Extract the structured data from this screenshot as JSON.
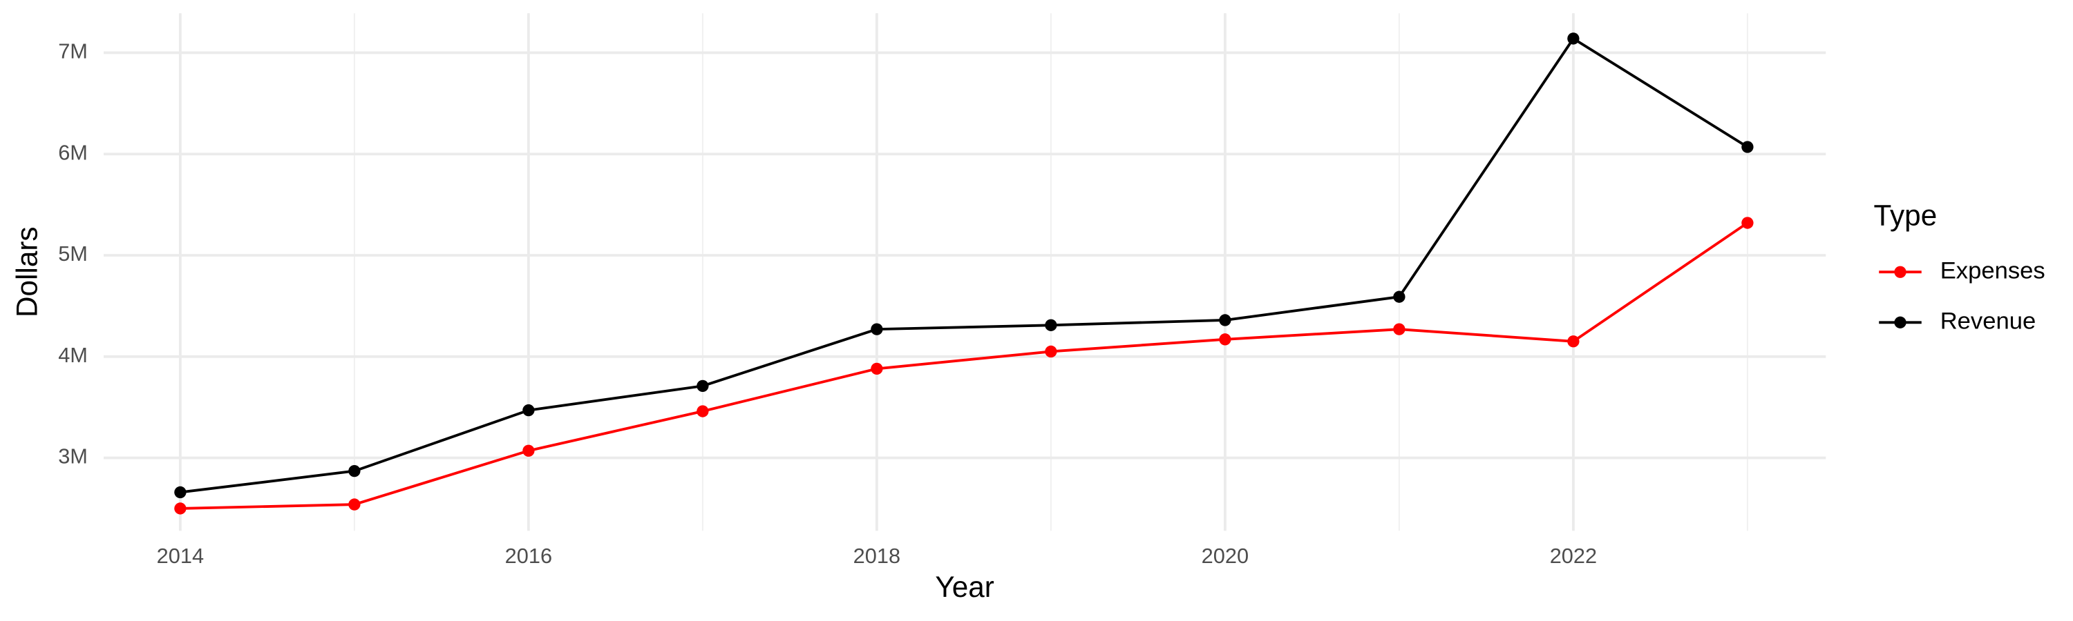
{
  "chart_data": {
    "type": "line",
    "x_label": "Year",
    "y_label": "Dollars",
    "legend_title": "Type",
    "legend_position": "right",
    "grid": true,
    "x": [
      2014,
      2015,
      2016,
      2017,
      2018,
      2019,
      2020,
      2021,
      2022,
      2023
    ],
    "series": [
      {
        "name": "Expenses",
        "color": "#ff0000",
        "values": [
          2500000,
          2540000,
          3070000,
          3460000,
          3880000,
          4050000,
          4170000,
          4270000,
          4150000,
          5320000
        ]
      },
      {
        "name": "Revenue",
        "color": "#000000",
        "values": [
          2660000,
          2870000,
          3470000,
          3710000,
          4270000,
          4310000,
          4360000,
          4590000,
          7140000,
          6070000
        ]
      }
    ],
    "xlim": [
      2013.56,
      2023.45
    ],
    "xticks": [
      2014,
      2016,
      2018,
      2020,
      2022
    ],
    "ylim": [
      2280000,
      7390000
    ],
    "yticks": [
      {
        "value": 3000000,
        "label": "3M"
      },
      {
        "value": 4000000,
        "label": "4M"
      },
      {
        "value": 5000000,
        "label": "5M"
      },
      {
        "value": 6000000,
        "label": "6M"
      },
      {
        "value": 7000000,
        "label": "7M"
      }
    ]
  }
}
